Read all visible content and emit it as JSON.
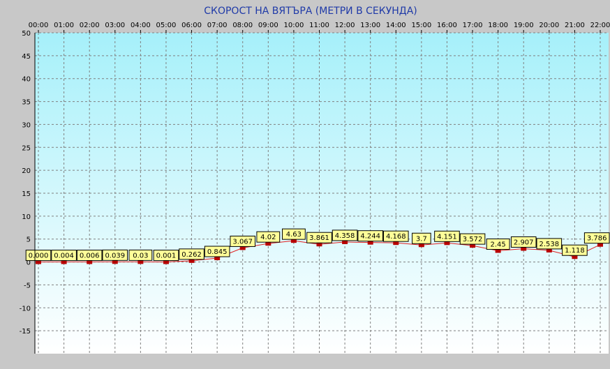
{
  "chart_data": {
    "type": "line",
    "title": "СКОРОСТ НА ВЯТЪРА (МЕТРИ В СЕКУНДА)",
    "xlabel": "",
    "ylabel": "",
    "categories": [
      "00:00",
      "01:00",
      "02:00",
      "03:00",
      "04:00",
      "05:00",
      "06:00",
      "07:00",
      "08:00",
      "09:00",
      "10:00",
      "11:00",
      "12:00",
      "13:00",
      "14:00",
      "15:00",
      "16:00",
      "17:00",
      "18:00",
      "19:00",
      "20:00",
      "21:00",
      "22:00"
    ],
    "data_labels": [
      "0.000",
      "0.004",
      "0.006",
      "0.039",
      "0.03",
      "0.001",
      "0.262",
      "0.845",
      "3.067",
      "4.02",
      "4.63",
      "3.861",
      "4.358",
      "4.244",
      "4.168",
      "3.7",
      "4.151",
      "3.572",
      "2.45",
      "2.907",
      "2.538",
      "1.118",
      "3.786"
    ],
    "values": [
      0.0,
      0.004,
      0.006,
      0.039,
      0.03,
      0.001,
      0.262,
      0.845,
      3.067,
      4.02,
      4.63,
      3.861,
      4.358,
      4.244,
      4.168,
      3.7,
      4.151,
      3.572,
      2.45,
      2.907,
      2.538,
      1.118,
      3.786
    ],
    "yticks": [
      "50",
      "45",
      "40",
      "35",
      "30",
      "25",
      "20",
      "15",
      "10",
      "5",
      "0",
      "-5",
      "-10",
      "-15"
    ],
    "ylim": [
      -20,
      50
    ],
    "grid": true,
    "x_axis_position": "top",
    "colors": {
      "background_top": "#a6f0fa",
      "background_bottom": "#ffffff",
      "line": "#e02020",
      "marker": "#b80000",
      "label_fill": "#ffff99",
      "title": "#1f3aa8",
      "grid": "#808080"
    }
  }
}
